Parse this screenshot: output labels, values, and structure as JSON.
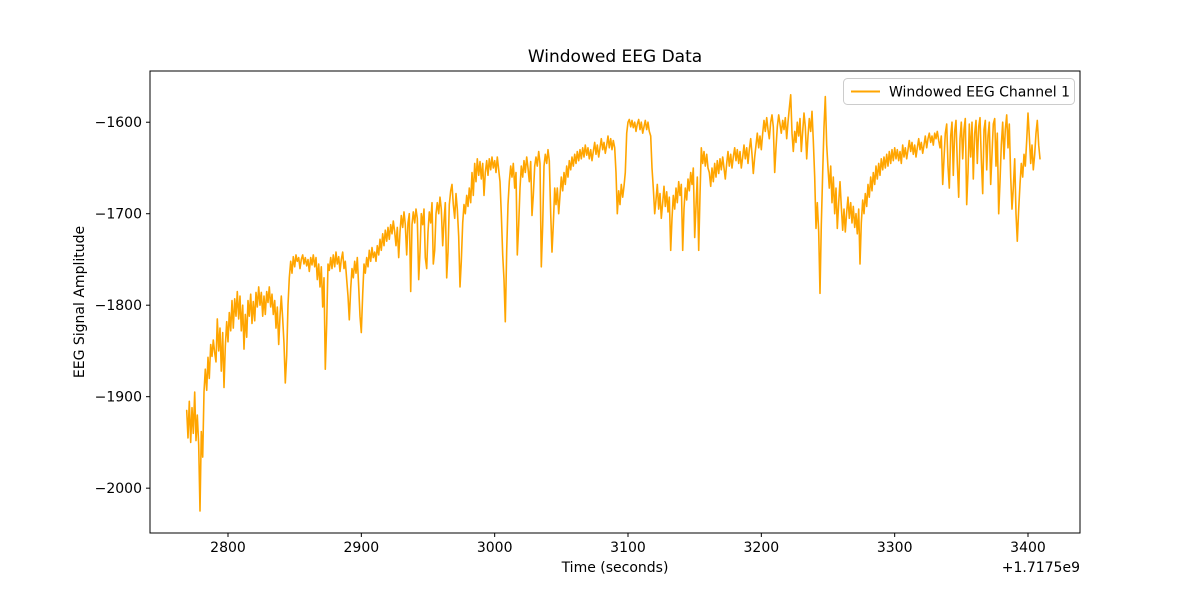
{
  "figure": {
    "background": "#ffffff"
  },
  "chart_data": {
    "type": "line",
    "title": "Windowed EEG Data",
    "xlabel": "Time (seconds)",
    "ylabel": "EEG Signal Amplitude",
    "x_offset_label": "+1.7175e9",
    "xlim": [
      2741.5,
      3439
    ],
    "ylim": [
      -2049,
      -1544
    ],
    "grid": false,
    "axis_color": "#000000",
    "xticks": {
      "values": [
        2800,
        2900,
        3000,
        3100,
        3200,
        3300,
        3400
      ],
      "labels": [
        "2800",
        "2900",
        "3000",
        "3100",
        "3200",
        "3300",
        "3400"
      ]
    },
    "yticks": {
      "values": [
        -2000,
        -1900,
        -1800,
        -1700,
        -1600
      ],
      "labels": [
        "−2000",
        "−1900",
        "−1800",
        "−1700",
        "−1600"
      ]
    },
    "legend": {
      "position": "upper right",
      "entries": [
        {
          "label": "Windowed EEG Channel 1",
          "color": "#FFA500"
        }
      ]
    },
    "series": [
      {
        "name": "Windowed EEG Channel 1",
        "color": "#FFA500",
        "line_width": 1.6,
        "t_start": 2769,
        "t_step": 1,
        "values": [
          -1915,
          -1945,
          -1905,
          -1950,
          -1912,
          -1940,
          -1895,
          -1948,
          -1920,
          -1953,
          -2025,
          -1938,
          -1966,
          -1895,
          -1870,
          -1893,
          -1857,
          -1880,
          -1843,
          -1856,
          -1838,
          -1852,
          -1862,
          -1815,
          -1850,
          -1825,
          -1872,
          -1830,
          -1890,
          -1845,
          -1818,
          -1840,
          -1808,
          -1828,
          -1795,
          -1825,
          -1793,
          -1812,
          -1785,
          -1815,
          -1790,
          -1828,
          -1800,
          -1848,
          -1810,
          -1835,
          -1795,
          -1812,
          -1788,
          -1820,
          -1796,
          -1817,
          -1786,
          -1802,
          -1780,
          -1800,
          -1786,
          -1812,
          -1790,
          -1810,
          -1785,
          -1797,
          -1780,
          -1802,
          -1788,
          -1810,
          -1795,
          -1825,
          -1802,
          -1843,
          -1812,
          -1790,
          -1815,
          -1842,
          -1885,
          -1855,
          -1800,
          -1770,
          -1752,
          -1765,
          -1747,
          -1758,
          -1745,
          -1752,
          -1748,
          -1760,
          -1750,
          -1745,
          -1755,
          -1748,
          -1757,
          -1750,
          -1763,
          -1748,
          -1756,
          -1745,
          -1758,
          -1748,
          -1772,
          -1755,
          -1780,
          -1758,
          -1802,
          -1770,
          -1870,
          -1820,
          -1755,
          -1762,
          -1748,
          -1760,
          -1745,
          -1758,
          -1742,
          -1755,
          -1747,
          -1763,
          -1750,
          -1742,
          -1760,
          -1752,
          -1772,
          -1790,
          -1816,
          -1782,
          -1760,
          -1770,
          -1752,
          -1765,
          -1748,
          -1780,
          -1812,
          -1830,
          -1788,
          -1755,
          -1765,
          -1748,
          -1758,
          -1740,
          -1752,
          -1737,
          -1748,
          -1742,
          -1752,
          -1735,
          -1745,
          -1728,
          -1740,
          -1722,
          -1735,
          -1718,
          -1730,
          -1715,
          -1728,
          -1712,
          -1722,
          -1708,
          -1720,
          -1735,
          -1715,
          -1748,
          -1720,
          -1702,
          -1715,
          -1698,
          -1712,
          -1745,
          -1710,
          -1700,
          -1785,
          -1712,
          -1698,
          -1710,
          -1695,
          -1705,
          -1772,
          -1742,
          -1700,
          -1712,
          -1695,
          -1748,
          -1760,
          -1720,
          -1698,
          -1710,
          -1688,
          -1755,
          -1740,
          -1700,
          -1688,
          -1700,
          -1682,
          -1695,
          -1735,
          -1708,
          -1688,
          -1770,
          -1742,
          -1690,
          -1675,
          -1668,
          -1690,
          -1705,
          -1678,
          -1695,
          -1725,
          -1780,
          -1752,
          -1710,
          -1690,
          -1700,
          -1680,
          -1692,
          -1672,
          -1688,
          -1655,
          -1680,
          -1645,
          -1665,
          -1640,
          -1658,
          -1643,
          -1662,
          -1645,
          -1680,
          -1655,
          -1642,
          -1658,
          -1640,
          -1652,
          -1638,
          -1650,
          -1642,
          -1655,
          -1638,
          -1652,
          -1665,
          -1700,
          -1745,
          -1772,
          -1818,
          -1740,
          -1690,
          -1665,
          -1648,
          -1660,
          -1645,
          -1672,
          -1655,
          -1745,
          -1712,
          -1672,
          -1648,
          -1660,
          -1642,
          -1655,
          -1638,
          -1650,
          -1665,
          -1643,
          -1702,
          -1680,
          -1648,
          -1638,
          -1648,
          -1632,
          -1645,
          -1758,
          -1712,
          -1648,
          -1635,
          -1645,
          -1630,
          -1642,
          -1700,
          -1742,
          -1712,
          -1672,
          -1690,
          -1672,
          -1700,
          -1680,
          -1660,
          -1675,
          -1655,
          -1668,
          -1648,
          -1660,
          -1642,
          -1652,
          -1638,
          -1648,
          -1635,
          -1645,
          -1632,
          -1642,
          -1630,
          -1640,
          -1628,
          -1638,
          -1625,
          -1636,
          -1628,
          -1640,
          -1630,
          -1642,
          -1632,
          -1622,
          -1635,
          -1625,
          -1638,
          -1628,
          -1618,
          -1630,
          -1622,
          -1634,
          -1625,
          -1615,
          -1628,
          -1618,
          -1630,
          -1620,
          -1628,
          -1655,
          -1700,
          -1675,
          -1690,
          -1668,
          -1682,
          -1670,
          -1655,
          -1612,
          -1600,
          -1597,
          -1605,
          -1598,
          -1606,
          -1600,
          -1610,
          -1602,
          -1597,
          -1608,
          -1600,
          -1612,
          -1605,
          -1598,
          -1608,
          -1600,
          -1610,
          -1615,
          -1650,
          -1672,
          -1700,
          -1685,
          -1668,
          -1695,
          -1678,
          -1705,
          -1688,
          -1670,
          -1692,
          -1676,
          -1698,
          -1682,
          -1740,
          -1705,
          -1680,
          -1695,
          -1672,
          -1688,
          -1665,
          -1680,
          -1668,
          -1740,
          -1695,
          -1672,
          -1685,
          -1662,
          -1675,
          -1655,
          -1668,
          -1650,
          -1726,
          -1692,
          -1660,
          -1740,
          -1680,
          -1628,
          -1645,
          -1632,
          -1648,
          -1635,
          -1650,
          -1655,
          -1670,
          -1650,
          -1665,
          -1645,
          -1660,
          -1642,
          -1656,
          -1640,
          -1652,
          -1638,
          -1650,
          -1662,
          -1645,
          -1632,
          -1648,
          -1635,
          -1650,
          -1638,
          -1628,
          -1642,
          -1630,
          -1645,
          -1632,
          -1650,
          -1638,
          -1625,
          -1640,
          -1628,
          -1645,
          -1630,
          -1618,
          -1635,
          -1656,
          -1638,
          -1625,
          -1612,
          -1628,
          -1615,
          -1630,
          -1612,
          -1598,
          -1610,
          -1595,
          -1608,
          -1618,
          -1600,
          -1592,
          -1605,
          -1655,
          -1628,
          -1605,
          -1592,
          -1602,
          -1612,
          -1598,
          -1608,
          -1595,
          -1618,
          -1600,
          -1585,
          -1570,
          -1612,
          -1632,
          -1610,
          -1622,
          -1600,
          -1615,
          -1596,
          -1632,
          -1610,
          -1590,
          -1605,
          -1640,
          -1615,
          -1596,
          -1610,
          -1588,
          -1620,
          -1660,
          -1716,
          -1688,
          -1720,
          -1787,
          -1712,
          -1655,
          -1605,
          -1572,
          -1625,
          -1650,
          -1672,
          -1648,
          -1688,
          -1660,
          -1700,
          -1672,
          -1716,
          -1688,
          -1665,
          -1692,
          -1718,
          -1695,
          -1720,
          -1698,
          -1682,
          -1705,
          -1688,
          -1710,
          -1692,
          -1715,
          -1700,
          -1722,
          -1695,
          -1755,
          -1710,
          -1685,
          -1700,
          -1678,
          -1692,
          -1668,
          -1682,
          -1660,
          -1675,
          -1655,
          -1668,
          -1648,
          -1662,
          -1645,
          -1658,
          -1640,
          -1652,
          -1638,
          -1650,
          -1635,
          -1648,
          -1632,
          -1645,
          -1630,
          -1642,
          -1628,
          -1640,
          -1630,
          -1642,
          -1632,
          -1645,
          -1625,
          -1638,
          -1628,
          -1640,
          -1630,
          -1620,
          -1632,
          -1622,
          -1635,
          -1625,
          -1638,
          -1628,
          -1618,
          -1630,
          -1622,
          -1634,
          -1625,
          -1615,
          -1628,
          -1618,
          -1612,
          -1622,
          -1615,
          -1625,
          -1612,
          -1618,
          -1610,
          -1620,
          -1628,
          -1615,
          -1668,
          -1640,
          -1612,
          -1602,
          -1648,
          -1672,
          -1615,
          -1600,
          -1658,
          -1610,
          -1598,
          -1645,
          -1682,
          -1618,
          -1600,
          -1640,
          -1608,
          -1596,
          -1690,
          -1655,
          -1602,
          -1638,
          -1600,
          -1662,
          -1612,
          -1598,
          -1645,
          -1605,
          -1595,
          -1640,
          -1678,
          -1608,
          -1598,
          -1652,
          -1615,
          -1600,
          -1668,
          -1635,
          -1602,
          -1596,
          -1648,
          -1612,
          -1700,
          -1665,
          -1625,
          -1600,
          -1640,
          -1608,
          -1592,
          -1628,
          -1602,
          -1660,
          -1695,
          -1672,
          -1640,
          -1700,
          -1730,
          -1695,
          -1668,
          -1645,
          -1660,
          -1635,
          -1648,
          -1620,
          -1590,
          -1615,
          -1645,
          -1625,
          -1652,
          -1635,
          -1612,
          -1598,
          -1625,
          -1640
        ]
      }
    ]
  }
}
